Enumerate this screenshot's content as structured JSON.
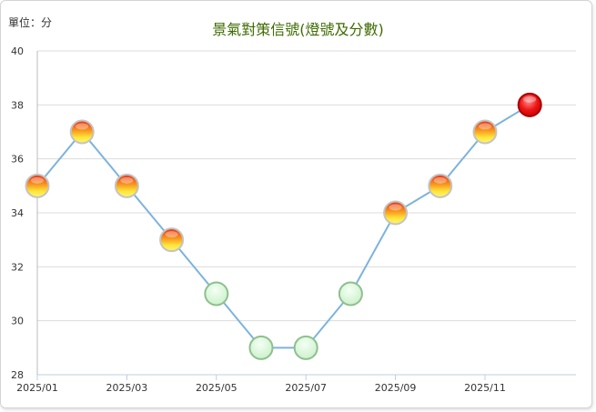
{
  "header": {
    "unit_label": "單位：分",
    "title": "景氣對策信號(燈號及分數)"
  },
  "chart_data": {
    "type": "line",
    "title": "景氣對策信號(燈號及分數)",
    "ylabel": "單位：分",
    "ylim": [
      28,
      40
    ],
    "yticks": [
      "28",
      "30",
      "32",
      "34",
      "36",
      "38",
      "40"
    ],
    "xticks": [
      "2025/01",
      "2025/03",
      "2025/05",
      "2025/07",
      "2025/09",
      "2025/11"
    ],
    "grid": true,
    "x": [
      "2025/01",
      "2025/02",
      "2025/03",
      "2025/04",
      "2025/05",
      "2025/06",
      "2025/07",
      "2025/08",
      "2025/09",
      "2025/10",
      "2025/11",
      "2025/12"
    ],
    "values": [
      35,
      37,
      35,
      33,
      31,
      29,
      29,
      31,
      34,
      35,
      37,
      38
    ],
    "signals": [
      "yellow-red",
      "yellow-red",
      "yellow-red",
      "yellow-red",
      "green",
      "green",
      "green",
      "green",
      "yellow-red",
      "yellow-red",
      "yellow-red",
      "red"
    ],
    "colors": {
      "line": "#7db3dd",
      "green": "#d6f5d6",
      "yellow-red-top": "#f03a1a",
      "yellow-red-bottom": "#fff04a",
      "red": "#ee1111",
      "title": "#3d6b00"
    }
  }
}
